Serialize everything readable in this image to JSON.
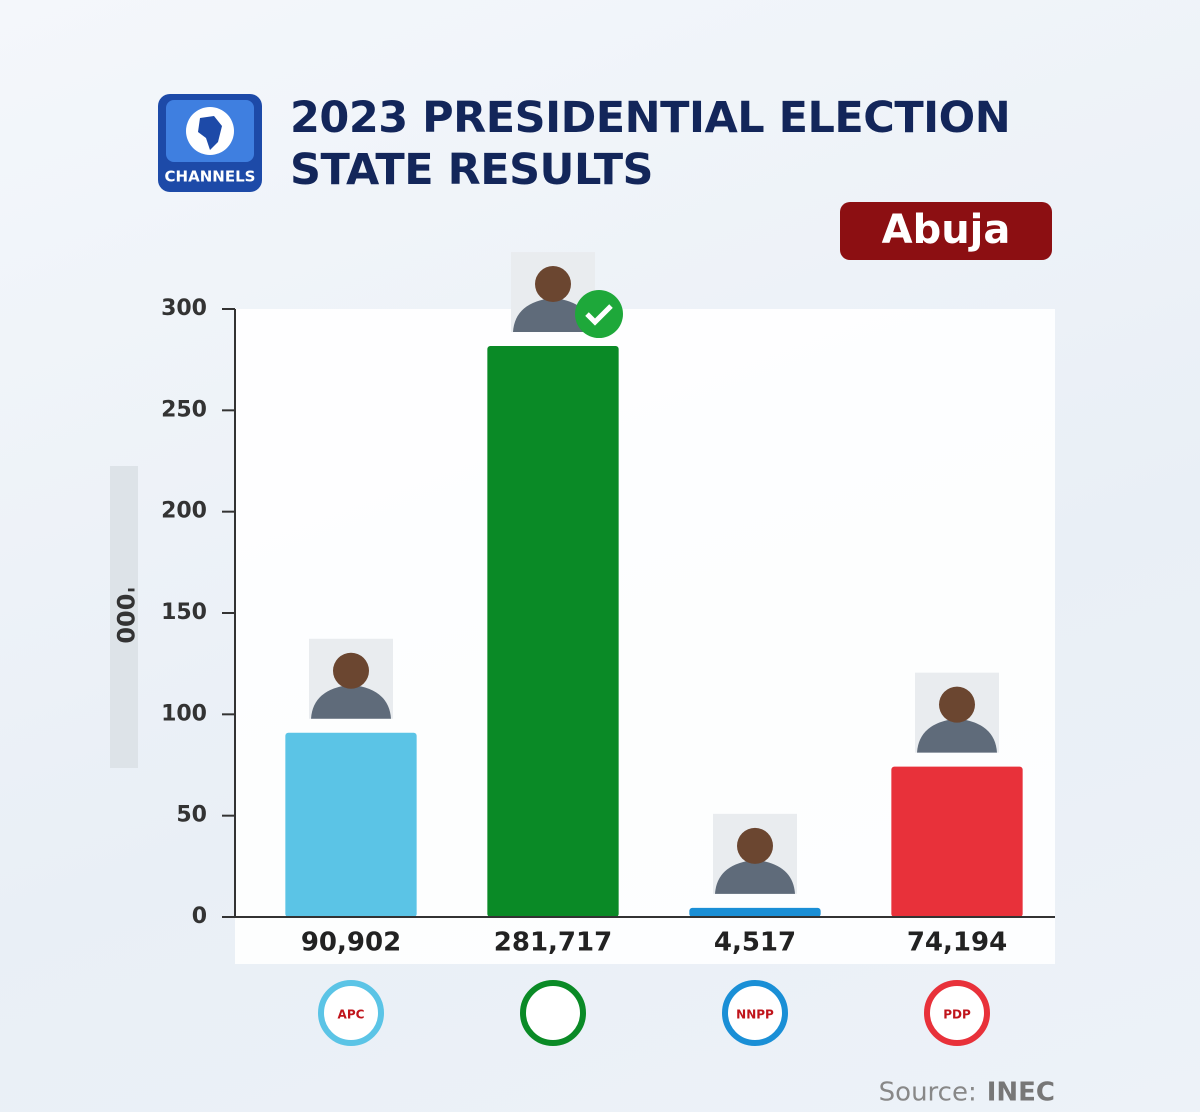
{
  "brand": "CHANNELS",
  "chart_data": {
    "type": "bar",
    "title": "2023 PRESIDENTIAL ELECTION STATE RESULTS",
    "annotation": "Abuja",
    "y_label": "'000",
    "categories": [
      "APC",
      null,
      "NNPP",
      "PDP"
    ],
    "values": [
      90.902,
      281.717,
      4.517,
      74.194
    ],
    "value_labels": [
      "90,902",
      "281,717",
      "4,517",
      "74,194"
    ],
    "colors": [
      "#5bc4e6",
      "#0a8a26",
      "#1a8fd6",
      "#e8313a"
    ],
    "ylim": [
      0,
      300
    ],
    "yticks": [
      0,
      50,
      100,
      150,
      200,
      250,
      300
    ],
    "source_label": "Source:",
    "source": "INEC"
  }
}
